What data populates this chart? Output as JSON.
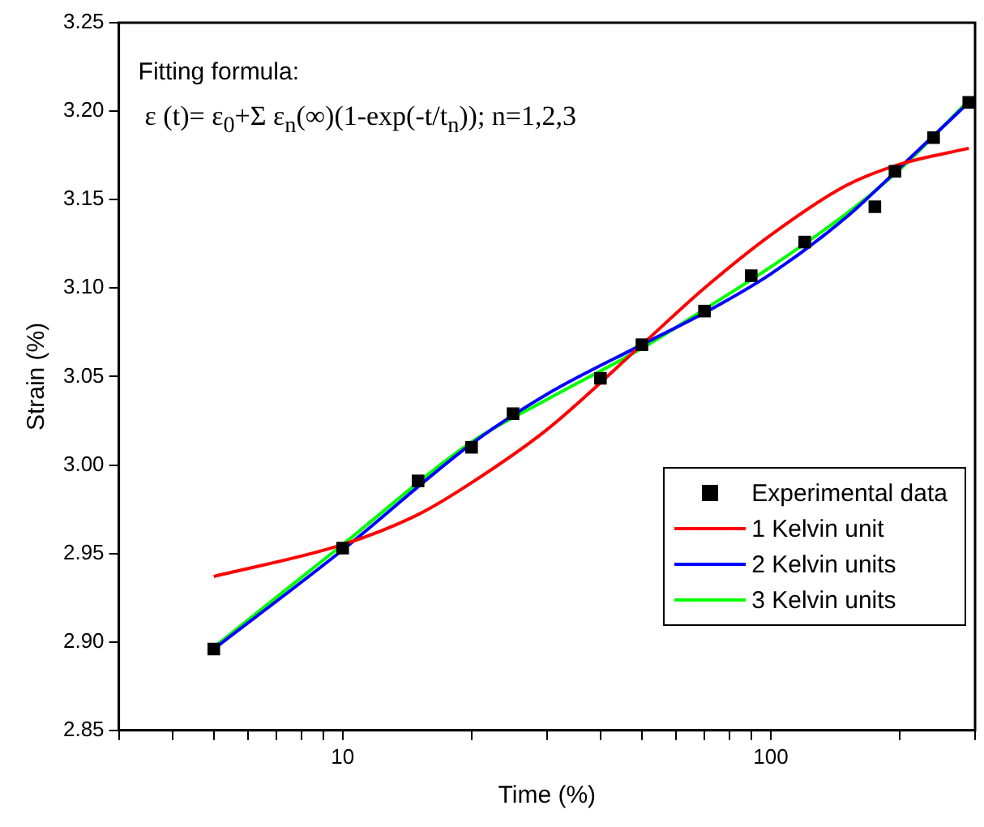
{
  "chart_data": {
    "type": "scatter",
    "xlabel": "Time (%)",
    "ylabel": "Strain (%)",
    "log": "x",
    "xlim": [
      3,
      300
    ],
    "xticks": [
      {
        "value": 3,
        "label": null
      },
      {
        "value": 4,
        "label": null
      },
      {
        "value": 5,
        "label": null
      },
      {
        "value": 6,
        "label": null
      },
      {
        "value": 7,
        "label": null
      },
      {
        "value": 8,
        "label": null
      },
      {
        "value": 9,
        "label": null
      },
      10,
      {
        "value": 20,
        "label": null
      },
      {
        "value": 30,
        "label": null
      },
      {
        "value": 40,
        "label": null
      },
      {
        "value": 50,
        "label": null
      },
      {
        "value": 60,
        "label": null
      },
      {
        "value": 70,
        "label": null
      },
      {
        "value": 80,
        "label": null
      },
      {
        "value": 90,
        "label": null
      },
      100,
      {
        "value": 200,
        "label": null
      },
      {
        "value": 300,
        "label": null
      }
    ],
    "ylim": [
      2.85,
      3.25
    ],
    "yticks": [
      {
        "value": 2.85,
        "label": "2.85"
      },
      {
        "value": 2.9,
        "label": "2.90"
      },
      {
        "value": 2.95,
        "label": "2.95"
      },
      {
        "value": 3.0,
        "label": "3.00"
      },
      {
        "value": 3.05,
        "label": "3.05"
      },
      {
        "value": 3.1,
        "label": "3.10"
      },
      {
        "value": 3.15,
        "label": "3.15"
      },
      {
        "value": 3.2,
        "label": "3.20"
      },
      {
        "value": 3.25,
        "label": "3.25"
      }
    ],
    "grid": false,
    "legend": "bottom right",
    "annotations": [
      "Fitting formula:",
      "ε (t)= ε$_{0}$+Σ ε$_{n}$(∞)(1-exp(-t/t$_{n}$)); n=1,2,3"
    ],
    "series": [
      {
        "name": "Experimental data",
        "type": "scatter",
        "marker": "square",
        "color": "#000000",
        "x": [
          5,
          10,
          15,
          20,
          25,
          40,
          50,
          70,
          90,
          120,
          175,
          195,
          240,
          290
        ],
        "values": [
          2.896,
          2.953,
          2.991,
          3.01,
          3.029,
          3.049,
          3.068,
          3.087,
          3.107,
          3.126,
          3.146,
          3.166,
          3.185,
          3.205
        ]
      },
      {
        "name": "1 Kelvin unit",
        "type": "line",
        "marker": "none",
        "color": "#ff0000",
        "x": [
          5,
          10,
          15,
          20,
          30,
          50,
          70,
          100,
          150,
          200,
          290
        ],
        "values": [
          2.937,
          2.955,
          2.972,
          2.99,
          3.02,
          3.068,
          3.1,
          3.13,
          3.158,
          3.17,
          3.179
        ]
      },
      {
        "name": "2 Kelvin units",
        "type": "line",
        "marker": "none",
        "color": "#0000ff",
        "x": [
          5,
          10,
          20,
          30,
          50,
          70,
          100,
          150,
          200,
          290
        ],
        "values": [
          2.896,
          2.952,
          3.012,
          3.04,
          3.068,
          3.086,
          3.108,
          3.14,
          3.168,
          3.205
        ]
      },
      {
        "name": "3 Kelvin units",
        "type": "line",
        "marker": "none",
        "color": "#00ff00",
        "x": [
          5,
          10,
          20,
          30,
          50,
          70,
          100,
          150,
          200,
          290
        ],
        "values": [
          2.897,
          2.955,
          3.013,
          3.037,
          3.066,
          3.088,
          3.112,
          3.142,
          3.167,
          3.206
        ]
      }
    ]
  }
}
